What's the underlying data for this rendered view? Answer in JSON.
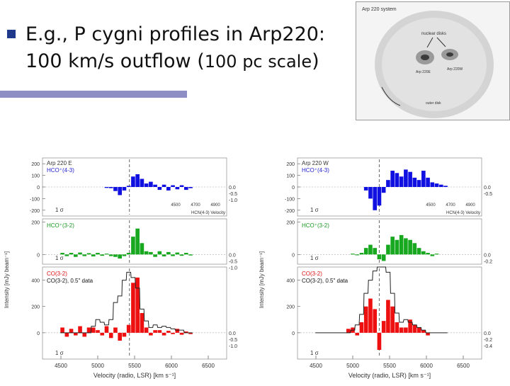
{
  "slide": {
    "bullet_icon": "square-bullet-icon",
    "headline_part1": "E.g., P cygni profiles in Arp220:",
    "headline_part2": "100 km/s outflow (",
    "headline_small": "100 pc scale",
    "headline_close": ")"
  },
  "inset": {
    "title": "Arp 220 system",
    "nuclear_label": "nuclear disks",
    "east_label": "Arp 220E",
    "west_label": "Arp 220W",
    "outer_label": "outer disk"
  },
  "colors": {
    "hco43": "#1010e0",
    "hco32": "#18a81f",
    "co32": "#ee1010",
    "bar": "#8e8ec5"
  },
  "chart_data": [
    {
      "type": "bar",
      "panel": "Arp 220 E",
      "title": "Arp 220 E",
      "ylabel": "Intensity [mJy beam⁻¹]",
      "xlabel": "Velocity (radio, LSR) [km s⁻¹]",
      "xlim": [
        4250,
        6750
      ],
      "x_ticks": [
        4500,
        5000,
        5500,
        6000,
        6500
      ],
      "x_tick_labels": [
        "4500",
        "5000",
        "5500",
        "6000",
        "6500"
      ],
      "systemic_velocity": 5430,
      "series": [
        {
          "name": "HCO+(4-3)",
          "label": "HCO⁺(4-3)",
          "ylim": [
            -250,
            250
          ],
          "y_ticks": [
            200,
            100,
            0,
            -100,
            -200
          ],
          "y_tick_labels": [
            "200",
            "100",
            "0",
            "-100",
            "-200"
          ],
          "right_ticks": [
            "0.0",
            "-0.5",
            "-1.0"
          ],
          "sigma_label": "1 σ",
          "top_axis_label": "HCN(4-3) Velocity",
          "top_axis_ticks": [
            "4500",
            "4700",
            "4900"
          ],
          "x": [
            4520,
            4580,
            4640,
            4700,
            4760,
            4820,
            4880,
            4940,
            5000,
            5060,
            5120,
            5180,
            5240,
            5300,
            5360,
            5420,
            5480,
            5540,
            5600,
            5660,
            5720,
            5780,
            5840,
            5900,
            5960,
            6020,
            6080,
            6140,
            6200,
            6260
          ],
          "values": [
            0,
            0,
            0,
            0,
            0,
            0,
            0,
            0,
            0,
            0,
            -8,
            -10,
            -35,
            -70,
            -30,
            10,
            90,
            110,
            70,
            30,
            45,
            20,
            -25,
            20,
            -30,
            15,
            -20,
            15,
            -25,
            -10
          ]
        },
        {
          "name": "HCO+(3-2)",
          "label": "HCO⁺(3-2)",
          "ylim": [
            -60,
            220
          ],
          "y_ticks": [
            200,
            0
          ],
          "y_tick_labels": [
            "200",
            "0"
          ],
          "right_ticks": [
            "0.0",
            "-0.5",
            "-1.0"
          ],
          "sigma_label": "1 σ",
          "x": [
            4520,
            4580,
            4640,
            4700,
            4760,
            4820,
            4880,
            4940,
            5000,
            5060,
            5120,
            5180,
            5240,
            5300,
            5360,
            5420,
            5480,
            5540,
            5600,
            5660,
            5720,
            5780,
            5840,
            5900,
            5960,
            6020,
            6080,
            6140,
            6200,
            6260
          ],
          "values": [
            10,
            -10,
            10,
            -15,
            12,
            -10,
            8,
            -12,
            10,
            -8,
            5,
            -10,
            -15,
            -25,
            -10,
            10,
            110,
            160,
            70,
            20,
            15,
            -15,
            20,
            -12,
            15,
            -10,
            12,
            -8,
            10,
            -6
          ]
        },
        {
          "name": "CO(3-2)",
          "label": "CO(3-2)",
          "ylim": [
            -200,
            500
          ],
          "y_ticks": [
            400,
            200,
            0
          ],
          "y_tick_labels": [
            "400",
            "200",
            "0"
          ],
          "right_ticks": [
            "0.0",
            "-0.5",
            "-1.0"
          ],
          "sigma_label": "1 σ",
          "legend_data": "CO(3-2), 0.5\" data",
          "x": [
            4520,
            4580,
            4640,
            4700,
            4760,
            4820,
            4880,
            4940,
            5000,
            5060,
            5120,
            5180,
            5240,
            5300,
            5360,
            5420,
            5480,
            5540,
            5600,
            5660,
            5720,
            5780,
            5840,
            5900,
            5960,
            6020,
            6080,
            6140,
            6200,
            6260
          ],
          "values": [
            40,
            -30,
            30,
            -20,
            50,
            -30,
            40,
            40,
            20,
            -20,
            50,
            -40,
            40,
            -60,
            -30,
            60,
            380,
            420,
            150,
            40,
            -20,
            20,
            20,
            -20,
            15,
            -10,
            30,
            -15,
            10,
            -10
          ],
          "overlay_values": [
            0,
            0,
            0,
            0,
            0,
            0,
            0,
            50,
            100,
            80,
            60,
            100,
            230,
            280,
            400,
            460,
            420,
            340,
            180,
            90,
            40,
            60,
            40,
            50,
            40,
            30,
            20,
            20,
            0,
            0
          ]
        }
      ]
    },
    {
      "type": "bar",
      "panel": "Arp 220 W",
      "title": "Arp 220 W",
      "ylabel": "Intensity [mJy beam⁻¹]",
      "xlabel": "Velocity (radio, LSR) [km s⁻¹]",
      "xlim": [
        4250,
        6750
      ],
      "x_ticks": [
        4500,
        5000,
        5500,
        6000,
        6500
      ],
      "x_tick_labels": [
        "4500",
        "5000",
        "5500",
        "6000",
        "6500"
      ],
      "systemic_velocity": 5360,
      "series": [
        {
          "name": "HCO+(4-3)",
          "label": "HCO⁺(4-3)",
          "ylim": [
            -250,
            250
          ],
          "y_ticks": [
            200,
            100,
            0,
            -100,
            -200
          ],
          "y_tick_labels": [
            "200",
            "100",
            "0",
            "-100",
            "-200"
          ],
          "right_ticks": [
            "0.0",
            "-0.5"
          ],
          "sigma_label": "1 σ",
          "top_axis_label": "HCN(4-3) Velocity",
          "top_axis_ticks": [
            "4500",
            "4700",
            "4900"
          ],
          "x": [
            4520,
            4580,
            4640,
            4700,
            4760,
            4820,
            4880,
            4940,
            5000,
            5060,
            5120,
            5180,
            5240,
            5300,
            5360,
            5420,
            5480,
            5540,
            5600,
            5660,
            5720,
            5780,
            5840,
            5900,
            5960,
            6020,
            6080,
            6140,
            6200,
            6260
          ],
          "values": [
            0,
            0,
            0,
            0,
            0,
            0,
            0,
            0,
            0,
            0,
            0,
            -30,
            -100,
            -200,
            -160,
            -50,
            60,
            140,
            120,
            90,
            150,
            130,
            80,
            60,
            140,
            80,
            40,
            30,
            20,
            10
          ]
        },
        {
          "name": "HCO+(3-2)",
          "label": "HCO⁺(3-2)",
          "ylim": [
            -60,
            220
          ],
          "y_ticks": [
            200,
            0
          ],
          "y_tick_labels": [
            "200",
            "0"
          ],
          "right_ticks": [
            "0.0",
            "-0.2"
          ],
          "sigma_label": "1 σ",
          "x": [
            4520,
            4580,
            4640,
            4700,
            4760,
            4820,
            4880,
            4940,
            5000,
            5060,
            5120,
            5180,
            5240,
            5300,
            5360,
            5420,
            5480,
            5540,
            5600,
            5660,
            5720,
            5780,
            5840,
            5900,
            5960,
            6020,
            6080,
            6140,
            6200,
            6260
          ],
          "values": [
            0,
            0,
            0,
            0,
            0,
            0,
            0,
            0,
            5,
            -5,
            10,
            40,
            60,
            40,
            -30,
            -40,
            60,
            110,
            90,
            120,
            100,
            90,
            70,
            40,
            20,
            10,
            -10,
            5,
            0,
            0
          ]
        },
        {
          "name": "CO(3-2)",
          "label": "CO(3-2)",
          "ylim": [
            -200,
            500
          ],
          "y_ticks": [
            400,
            200,
            0
          ],
          "y_tick_labels": [
            "400",
            "200",
            "0"
          ],
          "right_ticks": [
            "0.0",
            "-0.2",
            "-0.4"
          ],
          "sigma_label": "1 σ",
          "legend_data": "CO(3-2), 0.5\" data",
          "x": [
            4520,
            4580,
            4640,
            4700,
            4760,
            4820,
            4880,
            4940,
            5000,
            5060,
            5120,
            5180,
            5240,
            5300,
            5360,
            5420,
            5480,
            5540,
            5600,
            5660,
            5720,
            5780,
            5840,
            5900,
            5960,
            6020,
            6080,
            6140,
            6200,
            6260
          ],
          "values": [
            0,
            0,
            0,
            0,
            0,
            0,
            0,
            30,
            40,
            -20,
            80,
            200,
            260,
            180,
            -130,
            90,
            250,
            200,
            80,
            40,
            40,
            100,
            60,
            40,
            20,
            -20,
            0,
            0,
            0,
            0
          ],
          "overlay_values": [
            0,
            0,
            0,
            0,
            0,
            0,
            0,
            0,
            20,
            60,
            140,
            300,
            400,
            470,
            500,
            500,
            460,
            300,
            150,
            80,
            100,
            80,
            60,
            40,
            20,
            0,
            0,
            0,
            0,
            0
          ]
        }
      ]
    }
  ]
}
